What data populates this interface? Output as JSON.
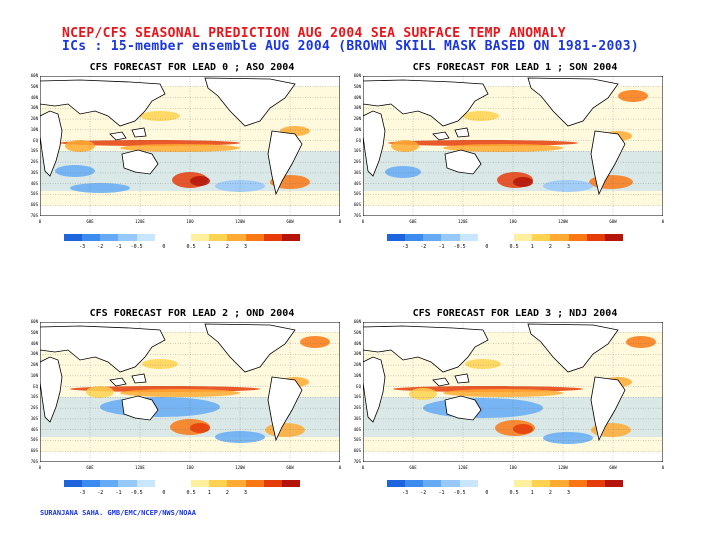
{
  "header": {
    "title": "NCEP/CFS SEASONAL PREDICTION AUG 2004 SEA SURFACE TEMP ANOMALY",
    "subtitle": "ICs : 15-member ensemble AUG 2004 (BROWN SKILL MASK BASED ON 1981-2003)"
  },
  "panels": [
    {
      "title": "CFS FORECAST FOR LEAD 0 ;  ASO 2004"
    },
    {
      "title": "CFS FORECAST FOR LEAD 1 ;  SON 2004"
    },
    {
      "title": "CFS FORECAST FOR LEAD 2 ;  OND 2004"
    },
    {
      "title": "CFS FORECAST FOR LEAD 3 ;  NDJ 2004"
    }
  ],
  "axes": {
    "lat_labels": [
      "60N",
      "50N",
      "40N",
      "30N",
      "20N",
      "10N",
      "EQ",
      "10S",
      "20S",
      "30S",
      "40S",
      "50S",
      "60S",
      "70S"
    ],
    "lon_labels": [
      "0",
      "60E",
      "120E",
      "180",
      "120W",
      "60W",
      "0"
    ]
  },
  "colorbar": {
    "labels": [
      "-3",
      "-2",
      "-1",
      "-0.5",
      "0",
      "0.5",
      "1",
      "2",
      "3"
    ],
    "colors": [
      "#1e64dc",
      "#3c8cf0",
      "#64aaf5",
      "#96c8fa",
      "#c8e6ff",
      "#ffffff",
      "#ffffff",
      "#fff0a0",
      "#ffd250",
      "#ffaa32",
      "#fa7814",
      "#e63c0a",
      "#b4140a"
    ]
  },
  "credit": "SURANJANA SAHA. GMB/EMC/NCEP/NWS/NOAA"
}
